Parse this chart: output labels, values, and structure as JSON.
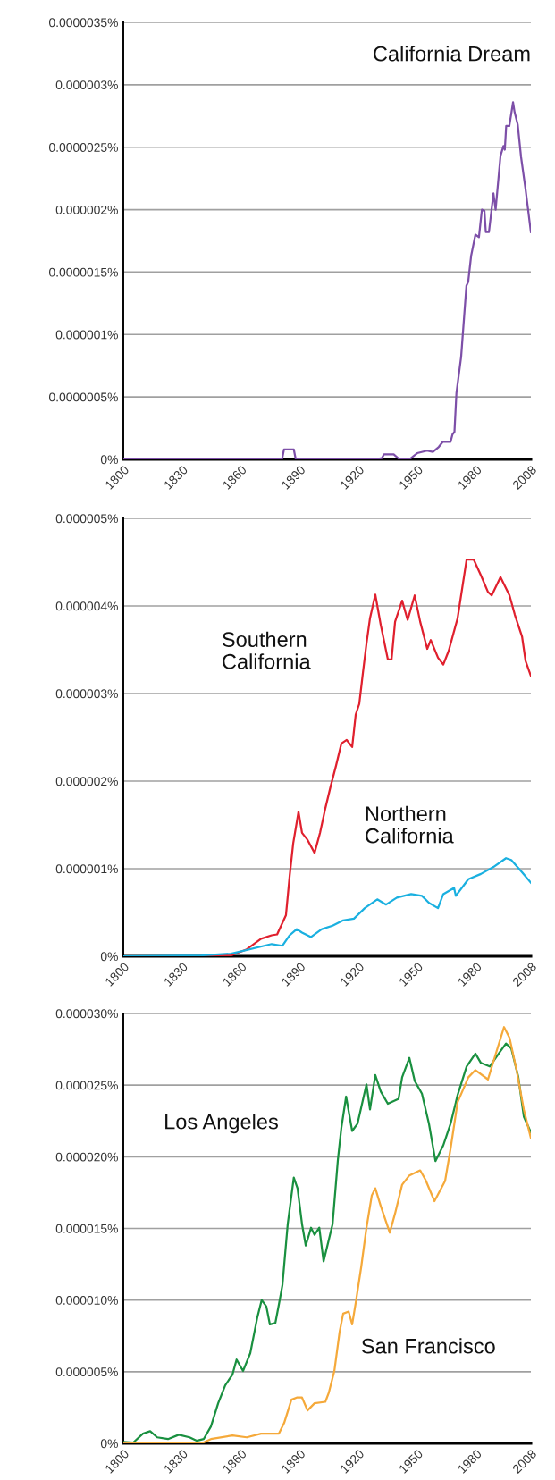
{
  "chart_data": [
    {
      "type": "line",
      "xlim": [
        1800,
        2008
      ],
      "xticks": [
        1800,
        1830,
        1860,
        1890,
        1920,
        1950,
        1980,
        2008
      ],
      "ylim": [
        0,
        3.5e-06
      ],
      "yticks": [
        {
          "value": 0,
          "label": "0%"
        },
        {
          "value": 5e-07,
          "label": "0.0000005%"
        },
        {
          "value": 1e-06,
          "label": "0.000001%"
        },
        {
          "value": 1.5e-06,
          "label": "0.0000015%"
        },
        {
          "value": 2e-06,
          "label": "0.000002%"
        },
        {
          "value": 2.5e-06,
          "label": "0.0000025%"
        },
        {
          "value": 3e-06,
          "label": "0.000003%"
        },
        {
          "value": 3.5e-06,
          "label": "0.0000035%"
        }
      ],
      "grid": "y",
      "series": [
        {
          "name": "California Dream",
          "color": "#7d4fa8",
          "x": [
            1800,
            1881,
            1882,
            1887,
            1888,
            1928,
            1932,
            1933,
            1938,
            1941,
            1946,
            1950,
            1955,
            1958,
            1961,
            1963,
            1967,
            1968,
            1969,
            1970,
            1972.4,
            1975.1,
            1976,
            1977.5,
            1979.7,
            1981.5,
            1983,
            1984.3,
            1985,
            1986.6,
            1988.9,
            1990,
            1992.5,
            1994,
            1994.7,
            1995.4,
            1997,
            1998.9,
            1999.7,
            2001.3,
            2003,
            2005.3,
            2008
          ],
          "values": [
            0,
            0,
            8e-08,
            8e-08,
            0,
            0,
            1e-08,
            4e-08,
            4e-08,
            0,
            0,
            5e-08,
            7e-08,
            6e-08,
            1e-07,
            1.4e-07,
            1.4e-07,
            2e-07,
            2.2e-07,
            5.3e-07,
            8.2e-07,
            1.39e-06,
            1.42e-06,
            1.63e-06,
            1.8e-06,
            1.78e-06,
            2e-06,
            1.99e-06,
            1.82e-06,
            1.82e-06,
            2.13e-06,
            2e-06,
            2.43e-06,
            2.51e-06,
            2.48e-06,
            2.67e-06,
            2.67e-06,
            2.86e-06,
            2.78e-06,
            2.68e-06,
            2.42e-06,
            2.16e-06,
            1.82e-06
          ]
        }
      ]
    },
    {
      "type": "line",
      "xlim": [
        1800,
        2008
      ],
      "xticks": [
        1800,
        1830,
        1860,
        1890,
        1920,
        1950,
        1980,
        2008
      ],
      "ylim": [
        0,
        5e-06
      ],
      "yticks": [
        {
          "value": 0,
          "label": "0%"
        },
        {
          "value": 1e-06,
          "label": "0.000001%"
        },
        {
          "value": 2e-06,
          "label": "0.000002%"
        },
        {
          "value": 3e-06,
          "label": "0.000003%"
        },
        {
          "value": 4e-06,
          "label": "0.000004%"
        },
        {
          "value": 5e-06,
          "label": "0.000005%"
        }
      ],
      "grid": "y",
      "series": [
        {
          "name": "Southern California",
          "color": "#e0202e",
          "x": [
            1800,
            1840,
            1855,
            1863,
            1870.3,
            1875.7,
            1878.5,
            1883,
            1884.9,
            1886.7,
            1889.4,
            1891.2,
            1894,
            1897.6,
            1900.4,
            1903.1,
            1905.8,
            1908.6,
            1911.3,
            1914,
            1916.8,
            1918.6,
            1920.4,
            1922.3,
            1924.1,
            1925.9,
            1928.6,
            1931.4,
            1935,
            1936.9,
            1938.7,
            1942.3,
            1945.1,
            1948.7,
            1951.5,
            1955.1,
            1956.9,
            1960.6,
            1963.3,
            1966.1,
            1970.6,
            1975.2,
            1978.8,
            1982.5,
            1986.1,
            1988,
            1992.5,
            1997.1,
            1999.8,
            2003.5,
            2005.3,
            2008
          ],
          "values": [
            0,
            0,
            1e-08,
            8e-08,
            2e-07,
            2.4e-07,
            2.5e-07,
            4.7e-07,
            9.2e-07,
            1.29e-06,
            1.65e-06,
            1.41e-06,
            1.33e-06,
            1.18e-06,
            1.41e-06,
            1.69e-06,
            1.94e-06,
            2.18e-06,
            2.43e-06,
            2.47e-06,
            2.39e-06,
            2.76e-06,
            2.88e-06,
            3.24e-06,
            3.57e-06,
            3.86e-06,
            4.13e-06,
            3.78e-06,
            3.39e-06,
            3.39e-06,
            3.82e-06,
            4.06e-06,
            3.84e-06,
            4.12e-06,
            3.82e-06,
            3.51e-06,
            3.61e-06,
            3.41e-06,
            3.33e-06,
            3.49e-06,
            3.86e-06,
            4.53e-06,
            4.53e-06,
            4.35e-06,
            4.16e-06,
            4.12e-06,
            4.33e-06,
            4.12e-06,
            3.9e-06,
            3.65e-06,
            3.37e-06,
            3.2e-06
          ]
        },
        {
          "name": "Northern California",
          "color": "#1ab0e0",
          "x": [
            1800,
            1840,
            1855,
            1875.7,
            1881.2,
            1884.9,
            1888.5,
            1891.2,
            1895.8,
            1901.3,
            1906.8,
            1912.2,
            1917.7,
            1923.2,
            1929.6,
            1934.1,
            1939.6,
            1946.9,
            1952.4,
            1956,
            1960.6,
            1963.3,
            1968.8,
            1969.7,
            1976.1,
            1982.5,
            1988.9,
            1995.3,
            1998,
            2003.5,
            2008
          ],
          "values": [
            0,
            1e-08,
            3e-08,
            1.4e-07,
            1.2e-07,
            2.4e-07,
            3.1e-07,
            2.7e-07,
            2.2e-07,
            3.1e-07,
            3.5e-07,
            4.1e-07,
            4.3e-07,
            5.5e-07,
            6.5e-07,
            5.9e-07,
            6.7e-07,
            7.1e-07,
            6.9e-07,
            6.1e-07,
            5.5e-07,
            7.1e-07,
            7.8e-07,
            6.9e-07,
            8.8e-07,
            9.4e-07,
            1.02e-06,
            1.12e-06,
            1.1e-06,
            9.6e-07,
            8.4e-07
          ]
        }
      ]
    },
    {
      "type": "line",
      "xlim": [
        1800,
        2008
      ],
      "xticks": [
        1800,
        1830,
        1860,
        1890,
        1920,
        1950,
        1980,
        2008
      ],
      "ylim": [
        0,
        3e-05
      ],
      "yticks": [
        {
          "value": 0,
          "label": "0%"
        },
        {
          "value": 5e-06,
          "label": "0.000005%"
        },
        {
          "value": 1e-05,
          "label": "0.000010%"
        },
        {
          "value": 1.5e-05,
          "label": "0.000015%"
        },
        {
          "value": 2e-05,
          "label": "0.000020%"
        },
        {
          "value": 2.5e-05,
          "label": "0.000025%"
        },
        {
          "value": 3e-05,
          "label": "0.000030%"
        }
      ],
      "grid": "y",
      "series": [
        {
          "name": "Los Angeles",
          "color": "#1a9040",
          "x": [
            1800,
            1805,
            1810,
            1813.7,
            1817.3,
            1822.8,
            1828.3,
            1833.8,
            1837.4,
            1841,
            1844.7,
            1848.4,
            1852,
            1855.7,
            1857.8,
            1861.1,
            1864.8,
            1868.4,
            1870.6,
            1873,
            1874.8,
            1877.6,
            1879.4,
            1881.2,
            1883.9,
            1887,
            1888.9,
            1891.2,
            1893.1,
            1895.8,
            1897.6,
            1900,
            1902.2,
            1906.8,
            1909.5,
            1911.3,
            1913.7,
            1916.8,
            1919.5,
            1924.1,
            1925.9,
            1928.6,
            1931.4,
            1935,
            1940.5,
            1942.3,
            1946,
            1948.7,
            1952.4,
            1956,
            1959.3,
            1963.3,
            1967,
            1970.6,
            1975.2,
            1979.7,
            1982.5,
            1987,
            1991.6,
            1995.3,
            1998,
            2001.6,
            2004.4,
            2008
          ],
          "values": [
            1e-07,
            5e-08,
            6.8e-07,
            8.5e-07,
            4.2e-07,
            3e-07,
            6e-07,
            4.2e-07,
            1.8e-07,
            3e-07,
            1.18e-06,
            2.8e-06,
            4.05e-06,
            4.8e-06,
            5.85e-06,
            5.05e-06,
            6.3e-06,
            8.8e-06,
            1e-05,
            9.55e-06,
            8.3e-06,
            8.4e-06,
            9.7e-06,
            1.105e-05,
            1.53e-05,
            1.855e-05,
            1.78e-05,
            1.53e-05,
            1.38e-05,
            1.505e-05,
            1.455e-05,
            1.505e-05,
            1.27e-05,
            1.53e-05,
            1.98e-05,
            2.205e-05,
            2.42e-05,
            2.18e-05,
            2.23e-05,
            2.505e-05,
            2.33e-05,
            2.57e-05,
            2.455e-05,
            2.37e-05,
            2.405e-05,
            2.555e-05,
            2.69e-05,
            2.53e-05,
            2.44e-05,
            2.23e-05,
            1.97e-05,
            2.08e-05,
            2.23e-05,
            2.43e-05,
            2.63e-05,
            2.72e-05,
            2.655e-05,
            2.63e-05,
            2.72e-05,
            2.79e-05,
            2.755e-05,
            2.555e-05,
            2.28e-05,
            2.17e-05
          ]
        },
        {
          "name": "San Francisco",
          "color": "#f5a93a",
          "x": [
            1800,
            1830,
            1840,
            1844.7,
            1855.7,
            1863,
            1870.3,
            1879.4,
            1882.1,
            1885.8,
            1888.5,
            1891.2,
            1894,
            1897.6,
            1903.1,
            1904.9,
            1907.7,
            1910.4,
            1912.2,
            1915,
            1916.8,
            1918.6,
            1921.4,
            1924.1,
            1926.8,
            1928.6,
            1931.4,
            1936,
            1938.7,
            1942.3,
            1946,
            1951.5,
            1954.2,
            1958.8,
            1964.2,
            1967,
            1970.6,
            1976.1,
            1979.7,
            1986.1,
            1989.8,
            1994.3,
            1997.1,
            2000.7,
            2004.4,
            2008
          ],
          "values": [
            5e-08,
            0,
            0,
            3e-07,
            5.5e-07,
            4.2e-07,
            6.8e-07,
            6.8e-07,
            1.43e-06,
            3.05e-06,
            3.2e-06,
            3.2e-06,
            2.3e-06,
            2.8e-06,
            2.9e-06,
            3.55e-06,
            5.05e-06,
            7.8e-06,
            9.05e-06,
            9.2e-06,
            8.3e-06,
            9.8e-06,
            1.23e-05,
            1.505e-05,
            1.73e-05,
            1.78e-05,
            1.655e-05,
            1.47e-05,
            1.605e-05,
            1.805e-05,
            1.87e-05,
            1.905e-05,
            1.84e-05,
            1.69e-05,
            1.83e-05,
            2.055e-05,
            2.38e-05,
            2.555e-05,
            2.605e-05,
            2.54e-05,
            2.705e-05,
            2.905e-05,
            2.83e-05,
            2.605e-05,
            2.33e-05,
            2.13e-05
          ]
        }
      ]
    }
  ]
}
